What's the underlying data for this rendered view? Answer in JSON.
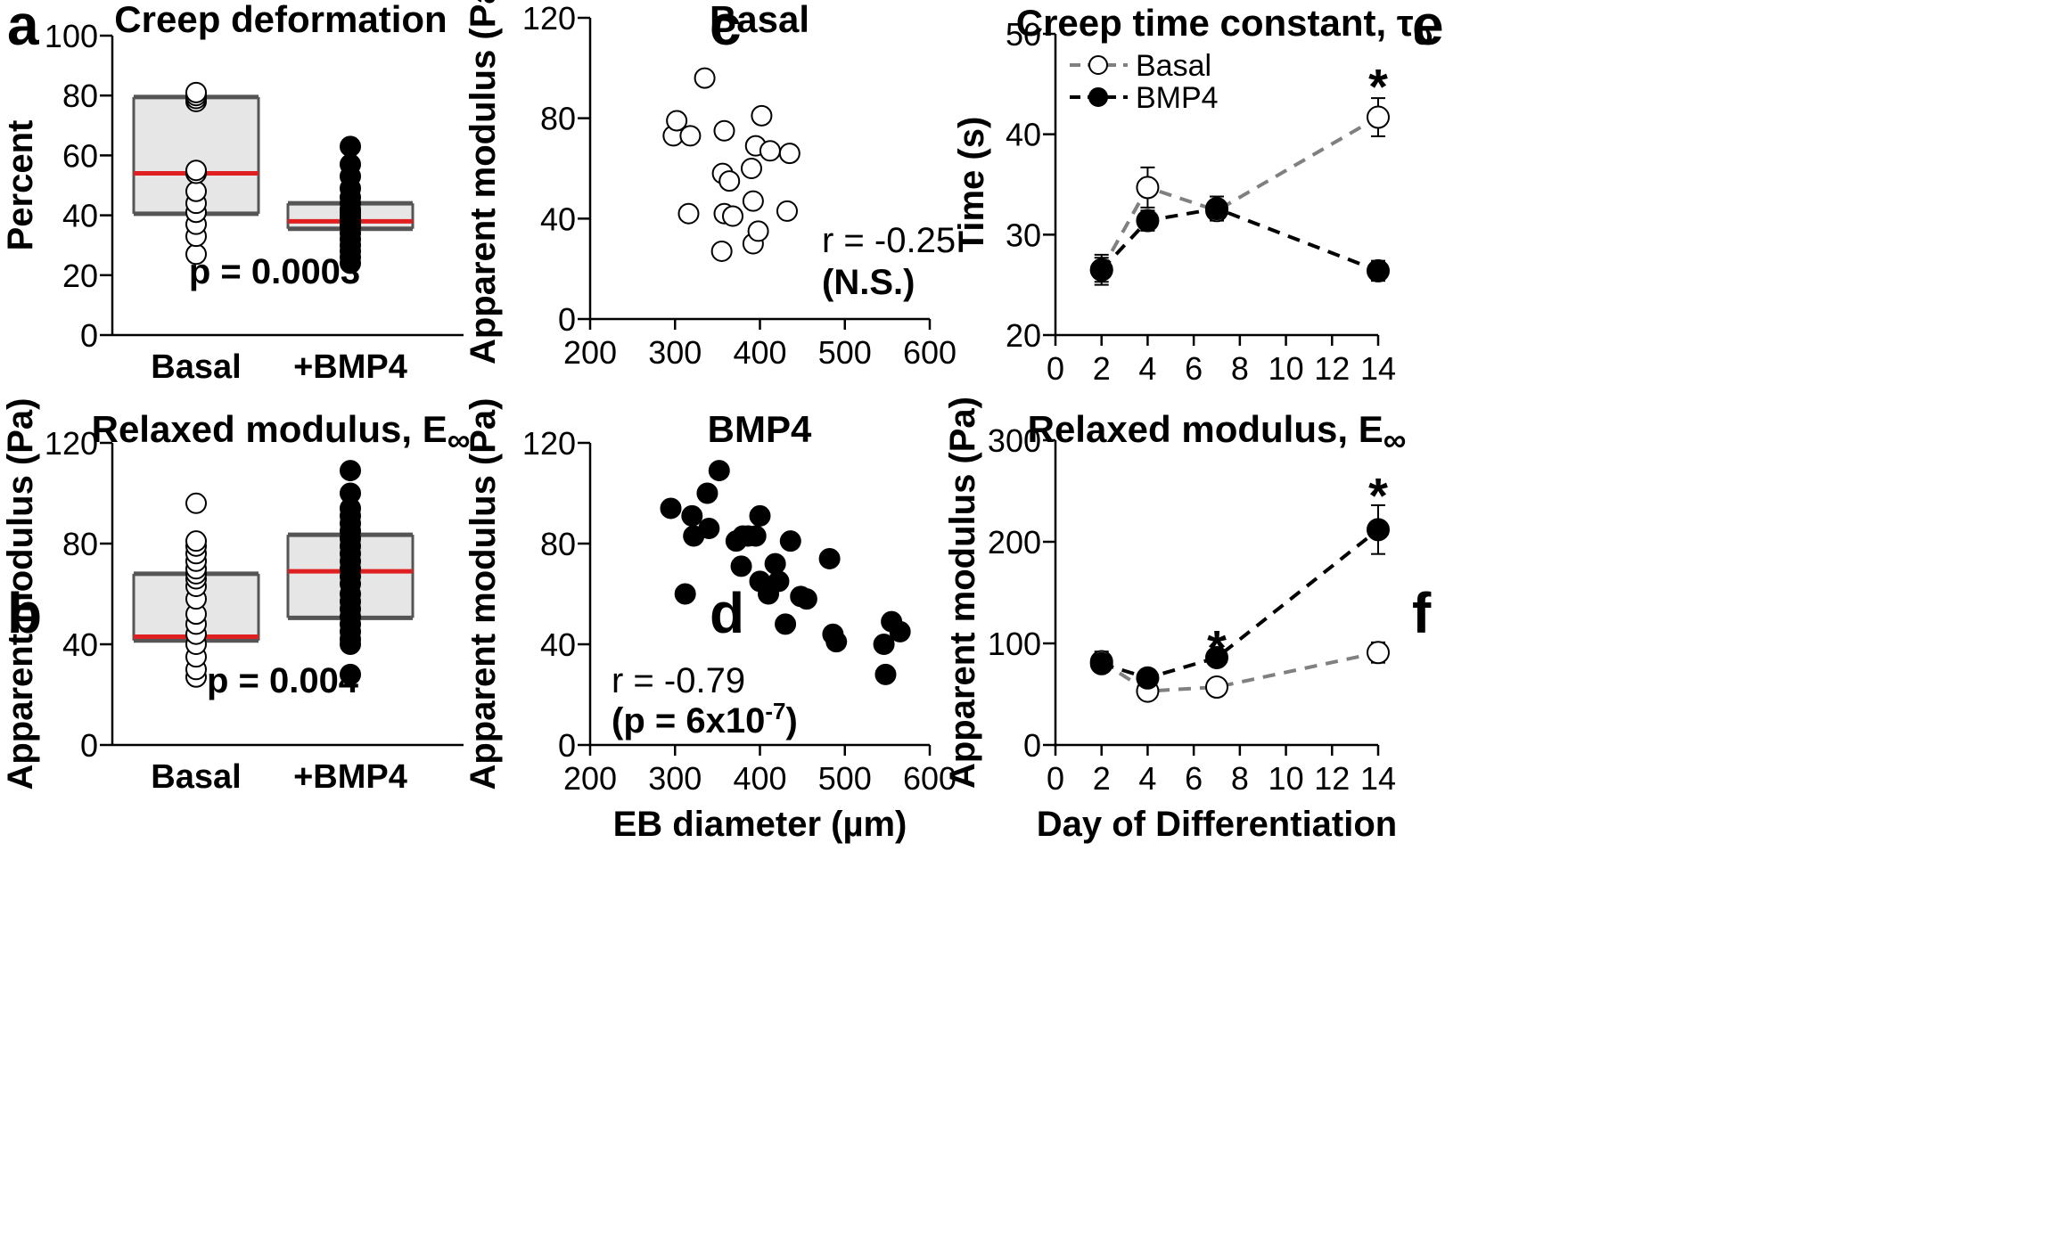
{
  "chart_data": [
    {
      "panel": "a",
      "type": "box",
      "title": "Creep deformation",
      "ylabel": "Percent",
      "ylim": [
        0,
        100
      ],
      "yticks": [
        "0",
        "20",
        "40",
        "60",
        "80",
        "100"
      ],
      "categories": [
        "Basal",
        "+BMP4"
      ],
      "boxes": [
        {
          "group": "Basal",
          "q1": 40.5,
          "median": 54,
          "q3": 79.5,
          "marker": "open",
          "points": [
            27,
            33,
            37,
            41,
            44,
            48,
            54,
            55,
            78,
            79,
            80,
            81
          ]
        },
        {
          "group": "+BMP4",
          "q1": 35.5,
          "median": 38,
          "q3": 44,
          "marker": "filled",
          "points": [
            24,
            26,
            28,
            30,
            32,
            34,
            36,
            37,
            38,
            39,
            40,
            41,
            42,
            44,
            46,
            49,
            53,
            57,
            63
          ]
        }
      ],
      "annotation": "p = 0.0003"
    },
    {
      "panel": "b",
      "type": "box",
      "title": "Relaxed modulus, E",
      "title_sub": "∞",
      "ylabel": "Apparent modulus (Pa)",
      "ylim": [
        0,
        120
      ],
      "yticks": [
        "0",
        "40",
        "80",
        "120"
      ],
      "categories": [
        "Basal",
        "+BMP4"
      ],
      "boxes": [
        {
          "group": "Basal",
          "q1": 41.5,
          "median": 43,
          "q3": 68,
          "marker": "open",
          "points": [
            27,
            30,
            35,
            40,
            44,
            48,
            52,
            58,
            63,
            66,
            68,
            70,
            73,
            76,
            79,
            81,
            96
          ]
        },
        {
          "group": "+BMP4",
          "q1": 50.5,
          "median": 69,
          "q3": 83.5,
          "marker": "filled",
          "points": [
            28,
            40,
            42,
            45,
            48,
            51,
            54,
            57,
            60,
            64,
            67,
            70,
            73,
            76,
            79,
            82,
            85,
            88,
            91,
            94,
            100,
            109
          ]
        }
      ],
      "annotation": "p = 0.004"
    },
    {
      "panel": "c",
      "type": "scatter",
      "title": "Basal",
      "ylabel": "Apparent modulus (Pa)",
      "xlim": [
        200,
        600
      ],
      "ylim": [
        0,
        120
      ],
      "xticks": [
        "200",
        "300",
        "400",
        "500",
        "600"
      ],
      "yticks": [
        "0",
        "40",
        "80",
        "120"
      ],
      "marker": "open",
      "x": [
        298,
        302,
        318,
        316,
        335,
        358,
        356,
        358,
        364,
        368,
        390,
        392,
        392,
        395,
        398,
        402,
        412,
        432,
        435,
        355
      ],
      "y": [
        73,
        79,
        73,
        42,
        96,
        75,
        58,
        42,
        55,
        41,
        60,
        47,
        30,
        69,
        35,
        81,
        67,
        43,
        66,
        27
      ],
      "annotation_lines": [
        "r = -0.25",
        "(N.S.)"
      ]
    },
    {
      "panel": "d",
      "type": "scatter",
      "title": "BMP4",
      "ylabel": "Apparent modulus (Pa)",
      "xlabel": "EB diameter (µm)",
      "xlim": [
        200,
        600
      ],
      "ylim": [
        0,
        120
      ],
      "xticks": [
        "200",
        "300",
        "400",
        "500",
        "600"
      ],
      "yticks": [
        "0",
        "40",
        "80",
        "120"
      ],
      "marker": "filled",
      "x": [
        295,
        312,
        320,
        322,
        338,
        340,
        352,
        372,
        378,
        380,
        386,
        395,
        400,
        400,
        410,
        418,
        422,
        430,
        436,
        448,
        455,
        482,
        486,
        490,
        546,
        548,
        555,
        565
      ],
      "y": [
        94,
        60,
        91,
        83,
        100,
        86,
        109,
        81,
        71,
        83,
        83,
        83,
        65,
        91,
        60,
        72,
        65,
        48,
        81,
        59,
        58,
        74,
        44,
        41,
        40,
        28,
        49,
        45
      ],
      "annotation_line1": "r = -0.79",
      "annotation_line2_pre": "(p = 6x10",
      "annotation_line2_sup": "-7",
      "annotation_line2_post": ")"
    },
    {
      "panel": "e",
      "type": "line",
      "title": "Creep time constant, τ",
      "title_sub": "σ",
      "ylabel": "Time (s)",
      "xlim": [
        0,
        14
      ],
      "ylim": [
        20,
        50
      ],
      "xticks": [
        "0",
        "2",
        "4",
        "6",
        "8",
        "10",
        "12",
        "14"
      ],
      "yticks": [
        "20",
        "30",
        "40",
        "50"
      ],
      "x": [
        2,
        4,
        7,
        14
      ],
      "series": [
        {
          "name": "Basal",
          "values": [
            26.5,
            34.7,
            32.4,
            41.7
          ],
          "errors": [
            1.5,
            2.0,
            1.0,
            1.9
          ],
          "color": "#808080",
          "marker": "open"
        },
        {
          "name": "BMP4",
          "values": [
            26.5,
            31.4,
            32.6,
            26.4
          ],
          "errors": [
            1.2,
            1.0,
            1.2,
            1.0
          ],
          "color": "#000000",
          "marker": "filled"
        }
      ],
      "significance": [
        {
          "x": 14,
          "y": 45.5,
          "label": "*"
        }
      ]
    },
    {
      "panel": "f",
      "type": "line",
      "title": "Relaxed modulus, E",
      "title_sub": "∞",
      "ylabel": "Apparent modulus (Pa)",
      "xlabel": "Day of Differentiation",
      "xlim": [
        0,
        14
      ],
      "ylim": [
        0,
        300
      ],
      "xticks": [
        "0",
        "2",
        "4",
        "6",
        "8",
        "10",
        "12",
        "14"
      ],
      "yticks": [
        "0",
        "100",
        "200",
        "300"
      ],
      "x": [
        2,
        4,
        7,
        14
      ],
      "series": [
        {
          "name": "Basal",
          "values": [
            82,
            53,
            57,
            91
          ],
          "errors": [
            10,
            5,
            4,
            10
          ],
          "color": "#808080",
          "marker": "open"
        },
        {
          "name": "BMP4",
          "values": [
            80,
            66,
            86,
            212
          ],
          "errors": [
            8,
            5,
            5,
            24
          ],
          "color": "#000000",
          "marker": "filled"
        }
      ],
      "significance": [
        {
          "x": 7,
          "y": 103,
          "label": "*"
        },
        {
          "x": 14,
          "y": 253,
          "label": "*"
        }
      ]
    }
  ],
  "panel_labels": {
    "a": "a",
    "b": "b",
    "c": "c",
    "d": "d",
    "e": "e",
    "f": "f"
  },
  "colors": {
    "median": "#e02020",
    "box_fill": "#e6e6e6",
    "box_edge": "#555555",
    "basal_line": "#808080",
    "bmp4_line": "#000000"
  }
}
